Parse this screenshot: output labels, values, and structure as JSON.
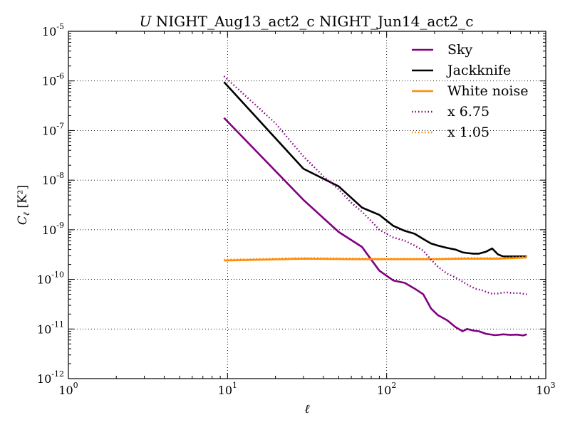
{
  "chart_data": {
    "type": "line",
    "title_italic": "U",
    "title_rest": "NIGHT_Aug13_act2_c NIGHT_Jun14_act2_c",
    "xlabel": "ℓ",
    "ylabel_main": "C",
    "ylabel_sub": "ℓ",
    "ylabel_units": "[K²]",
    "xscale": "log",
    "yscale": "log",
    "xlim": [
      1,
      1000
    ],
    "ylim": [
      1e-12,
      1e-05
    ],
    "grid": true,
    "legend_position": "top-right",
    "x_ticks": [
      {
        "value": 1,
        "base": "10",
        "exp": "0"
      },
      {
        "value": 10,
        "base": "10",
        "exp": "1"
      },
      {
        "value": 100,
        "base": "10",
        "exp": "2"
      },
      {
        "value": 1000,
        "base": "10",
        "exp": "3"
      }
    ],
    "y_ticks": [
      {
        "value": 1e-12,
        "base": "10",
        "exp": "-12"
      },
      {
        "value": 1e-11,
        "base": "10",
        "exp": "-11"
      },
      {
        "value": 1e-10,
        "base": "10",
        "exp": "-10"
      },
      {
        "value": 1e-09,
        "base": "10",
        "exp": "-9"
      },
      {
        "value": 1e-08,
        "base": "10",
        "exp": "-8"
      },
      {
        "value": 1e-07,
        "base": "10",
        "exp": "-7"
      },
      {
        "value": 1e-06,
        "base": "10",
        "exp": "-6"
      },
      {
        "value": 1e-05,
        "base": "10",
        "exp": "-5"
      }
    ],
    "series": [
      {
        "name": "Sky",
        "color": "#800080",
        "style": "solid",
        "x": [
          9.5,
          30,
          50,
          70,
          80,
          90,
          110,
          130,
          150,
          170,
          190,
          210,
          240,
          270,
          300,
          320,
          350,
          380,
          420,
          480,
          540,
          600,
          660,
          720,
          760
        ],
        "y": [
          1.8e-07,
          4e-09,
          9e-10,
          4.5e-10,
          2.5e-10,
          1.5e-10,
          9.5e-11,
          8.5e-11,
          6.5e-11,
          5e-11,
          2.6e-11,
          1.9e-11,
          1.5e-11,
          1.1e-11,
          9e-12,
          1e-11,
          9.3e-12,
          9e-12,
          8e-12,
          7.5e-12,
          7.8e-12,
          7.6e-12,
          7.7e-12,
          7.4e-12,
          7.8e-12
        ]
      },
      {
        "name": "Jackknife",
        "color": "#000000",
        "style": "solid",
        "x": [
          9.5,
          30,
          50,
          70,
          90,
          110,
          130,
          150,
          170,
          190,
          210,
          240,
          270,
          300,
          320,
          350,
          380,
          420,
          460,
          500,
          540,
          600,
          660,
          720,
          760
        ],
        "y": [
          9.5e-07,
          1.7e-08,
          7.5e-09,
          2.8e-09,
          2e-09,
          1.2e-09,
          9.5e-10,
          8.3e-10,
          6.5e-10,
          5.3e-10,
          4.8e-10,
          4.3e-10,
          4e-10,
          3.5e-10,
          3.4e-10,
          3.3e-10,
          3.3e-10,
          3.6e-10,
          4.2e-10,
          3.2e-10,
          2.9e-10,
          2.9e-10,
          2.9e-10,
          2.9e-10,
          2.9e-10
        ]
      },
      {
        "name": "White noise",
        "color": "#ff8c00",
        "style": "solid",
        "x": [
          9.5,
          30,
          60,
          100,
          200,
          300,
          500,
          760
        ],
        "y": [
          2.4e-10,
          2.6e-10,
          2.55e-10,
          2.55e-10,
          2.55e-10,
          2.6e-10,
          2.6e-10,
          2.75e-10
        ]
      },
      {
        "name": "x 6.75",
        "color": "#800080",
        "style": "dotted",
        "x": [
          9.5,
          20,
          30,
          40,
          50,
          60,
          70,
          80,
          90,
          110,
          130,
          150,
          170,
          190,
          210,
          240,
          270,
          300,
          330,
          360,
          400,
          450,
          500,
          560,
          620,
          680,
          760
        ],
        "y": [
          1.25e-06,
          1.4e-07,
          3e-08,
          1.2e-08,
          6.5e-09,
          3.5e-09,
          2.3e-09,
          1.5e-09,
          1e-09,
          7e-10,
          6e-10,
          4.8e-10,
          3.8e-10,
          2.5e-10,
          1.8e-10,
          1.3e-10,
          1.1e-10,
          9e-11,
          7.5e-11,
          6.5e-11,
          6e-11,
          5.2e-11,
          5.2e-11,
          5.5e-11,
          5.3e-11,
          5.3e-11,
          5e-11
        ]
      },
      {
        "name": "x 1.05",
        "color": "#ff8c00",
        "style": "dotted",
        "x": [
          9.5,
          30,
          60,
          100,
          200,
          300,
          500,
          760
        ],
        "y": [
          2.5e-10,
          2.7e-10,
          2.65e-10,
          2.6e-10,
          2.6e-10,
          2.7e-10,
          2.7e-10,
          2.85e-10
        ]
      }
    ]
  }
}
